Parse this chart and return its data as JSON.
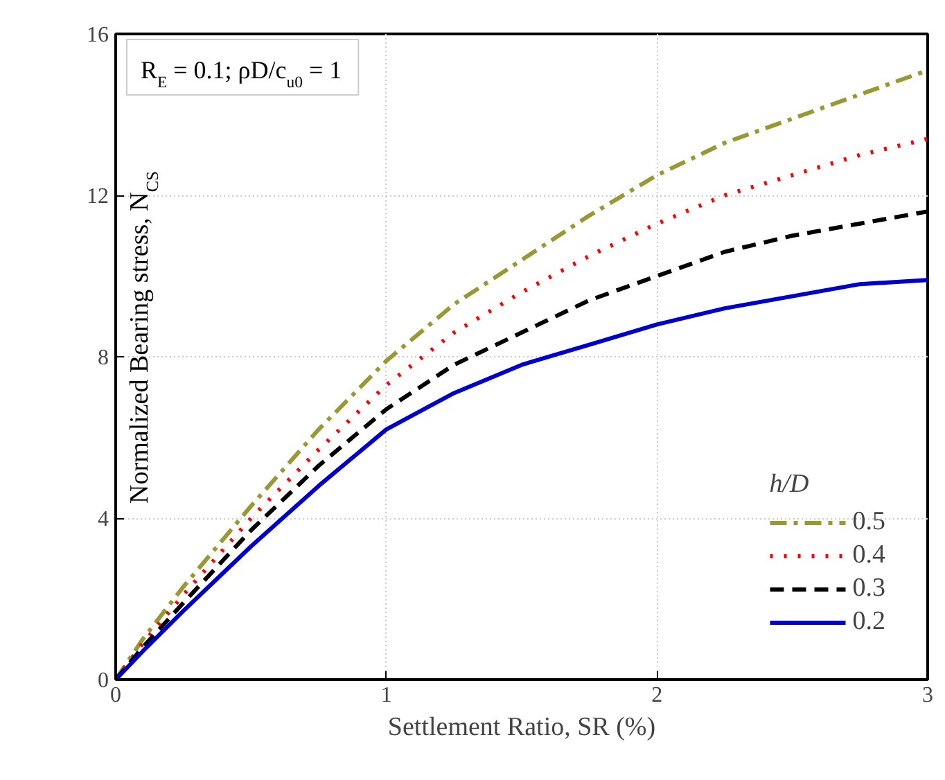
{
  "chart_data": {
    "type": "line",
    "xlabel": "Settlement Ratio, SR (%)",
    "ylabel": "Normalized Bearing stress, N$_{CS}$",
    "x": [
      0,
      0.1,
      0.25,
      0.5,
      0.75,
      1,
      1.25,
      1.5,
      1.75,
      2,
      2.25,
      2.5,
      2.75,
      3
    ],
    "xlim": [
      0,
      3
    ],
    "ylim": [
      0,
      16
    ],
    "xticks": [
      0,
      1,
      2,
      3
    ],
    "yticks": [
      0,
      4,
      8,
      12,
      16
    ],
    "grid": true,
    "legend": "bottom right",
    "legend_title": "h/D",
    "marker": "none",
    "annotations": [
      "R$_{E}$ = 0.1; ρD/c$_{u0}$ = 1"
    ],
    "series": [
      {
        "name": "0.5",
        "color": "#999933",
        "line_style": "dashdot",
        "values": [
          0,
          1.0,
          2.3,
          4.3,
          6.2,
          7.9,
          9.3,
          10.4,
          11.5,
          12.5,
          13.3,
          13.9,
          14.5,
          15.1
        ]
      },
      {
        "name": "0.4",
        "color": "#ff0000",
        "line_style": "dotted",
        "values": [
          0,
          0.9,
          2.1,
          4.0,
          5.7,
          7.3,
          8.6,
          9.6,
          10.5,
          11.3,
          12.0,
          12.5,
          13.0,
          13.4
        ]
      },
      {
        "name": "0.3",
        "color": "#000000",
        "line_style": "dashed",
        "values": [
          0,
          0.8,
          1.9,
          3.7,
          5.3,
          6.7,
          7.8,
          8.6,
          9.4,
          10.0,
          10.6,
          11.0,
          11.3,
          11.6
        ]
      },
      {
        "name": "0.2",
        "color": "#0000cc",
        "line_style": "solid",
        "values": [
          0,
          0.7,
          1.7,
          3.3,
          4.8,
          6.2,
          7.1,
          7.8,
          8.3,
          8.8,
          9.2,
          9.5,
          9.8,
          9.9
        ]
      }
    ]
  }
}
